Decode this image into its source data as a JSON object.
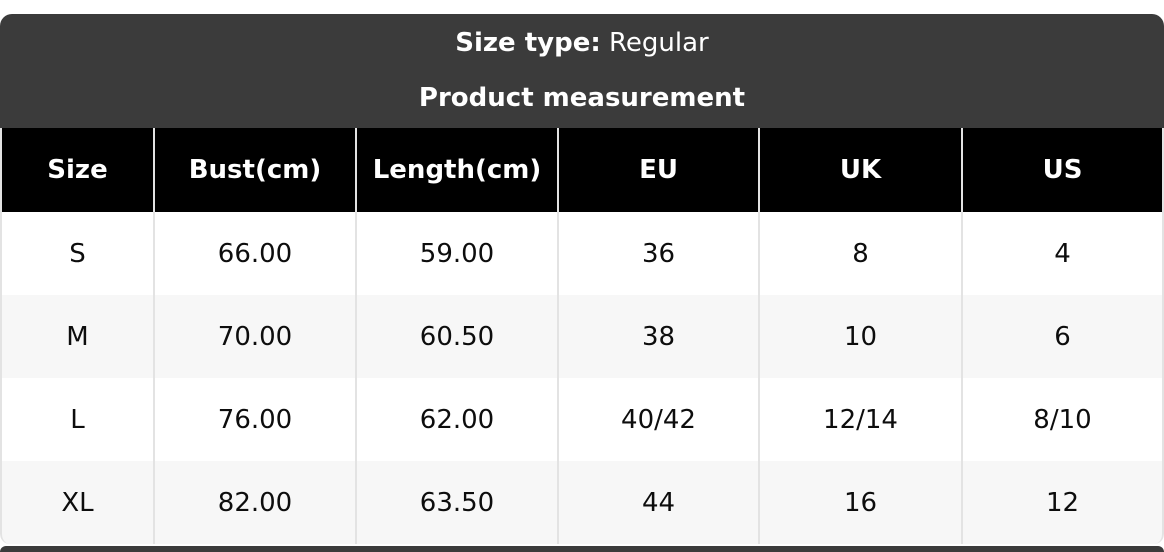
{
  "header": {
    "size_type_label": "Size type:",
    "size_type_value": "Regular",
    "subtitle": "Product measurement"
  },
  "table": {
    "columns": [
      "Size",
      "Bust(cm)",
      "Length(cm)",
      "EU",
      "UK",
      "US"
    ],
    "rows": [
      [
        "S",
        "66.00",
        "59.00",
        "36",
        "8",
        "4"
      ],
      [
        "M",
        "70.00",
        "60.50",
        "38",
        "10",
        "6"
      ],
      [
        "L",
        "76.00",
        "62.00",
        "40/42",
        "12/14",
        "8/10"
      ],
      [
        "XL",
        "82.00",
        "63.50",
        "44",
        "16",
        "12"
      ]
    ]
  },
  "colors": {
    "band": "#3b3b3b",
    "header_bg": "#000000",
    "row_bg": "#ffffff",
    "row_alt": "#f7f7f7",
    "border": "#e3e3e3",
    "text": "#0d0d0d",
    "text_inverse": "#ffffff",
    "page_bg": "#ffffff"
  }
}
